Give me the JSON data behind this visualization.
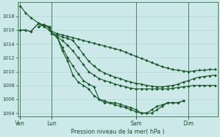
{
  "background_color": "#cce8e8",
  "grid_color": "#aacccc",
  "line_color": "#1a5c2a",
  "title": "Pression niveau de la mer( hPa )",
  "x_tick_labels": [
    "Ven",
    "Lun",
    "Sam",
    "Dim"
  ],
  "x_tick_positions": [
    0,
    12,
    44,
    64
  ],
  "xlim": [
    -1,
    75
  ],
  "ylim": [
    1003.5,
    1020.0
  ],
  "yticks": [
    1004,
    1006,
    1008,
    1010,
    1012,
    1014,
    1016,
    1018
  ],
  "series": [
    {
      "x": [
        0,
        2,
        4,
        7,
        9,
        11,
        12,
        14,
        16,
        18,
        20,
        22,
        24,
        26,
        28,
        30,
        32,
        34,
        36,
        38,
        40,
        42,
        44,
        46,
        48,
        50,
        52,
        54,
        56,
        58,
        60,
        62,
        64,
        66,
        68,
        70,
        72,
        74
      ],
      "y": [
        1019.5,
        1018.5,
        1017.8,
        1017.0,
        1016.5,
        1016.0,
        1015.8,
        1015.5,
        1015.3,
        1015.1,
        1014.9,
        1014.7,
        1014.5,
        1014.3,
        1014.1,
        1013.9,
        1013.7,
        1013.5,
        1013.3,
        1013.1,
        1012.8,
        1012.5,
        1012.2,
        1011.9,
        1011.6,
        1011.3,
        1011.0,
        1010.7,
        1010.5,
        1010.3,
        1010.2,
        1010.1,
        1010.0,
        1010.1,
        1010.2,
        1010.2,
        1010.3,
        1010.3
      ]
    },
    {
      "x": [
        0,
        2,
        4,
        7,
        9,
        11,
        12,
        14,
        16,
        18,
        20,
        22,
        24,
        26,
        28,
        30,
        32,
        34,
        36,
        38,
        40,
        42,
        44,
        46,
        48,
        50,
        52,
        54,
        56,
        58,
        60,
        62,
        64,
        66,
        68,
        70,
        72,
        74
      ],
      "y": [
        1016.0,
        1016.0,
        1015.8,
        1017.0,
        1016.7,
        1016.5,
        1015.5,
        1015.3,
        1015.0,
        1014.8,
        1014.5,
        1013.5,
        1012.5,
        1011.5,
        1010.8,
        1010.2,
        1009.8,
        1009.5,
        1009.2,
        1009.0,
        1008.7,
        1008.5,
        1008.3,
        1008.2,
        1008.0,
        1007.9,
        1007.8,
        1007.8,
        1007.9,
        1008.0,
        1008.2,
        1008.5,
        1008.7,
        1009.0,
        1009.2,
        1009.3,
        1009.4,
        1009.5
      ]
    },
    {
      "x": [
        0,
        2,
        4,
        7,
        9,
        11,
        12,
        14,
        16,
        18,
        20,
        22,
        24,
        26,
        28,
        30,
        32,
        34,
        36,
        38,
        40,
        42,
        44,
        46,
        48,
        50,
        52,
        54,
        56,
        58,
        60,
        62,
        64,
        66,
        68,
        70,
        72,
        74
      ],
      "y": [
        1016.0,
        1016.0,
        1015.8,
        1017.0,
        1016.7,
        1016.5,
        1015.5,
        1015.0,
        1014.5,
        1013.8,
        1013.0,
        1012.0,
        1011.0,
        1010.0,
        1009.5,
        1009.0,
        1008.7,
        1008.5,
        1008.2,
        1008.0,
        1007.8,
        1007.6,
        1007.5,
        1007.5,
        1007.5,
        1007.5,
        1007.5,
        1007.5,
        1007.5,
        1007.6,
        1007.7,
        1007.8,
        1007.9,
        1008.0,
        1008.0,
        1008.0,
        1008.0,
        1008.0
      ]
    },
    {
      "x": [
        7,
        9,
        11,
        12,
        14,
        16,
        18,
        20,
        22,
        24,
        26,
        28,
        30,
        32,
        34,
        36,
        38,
        40,
        42,
        44,
        46,
        48,
        50,
        52,
        54,
        56,
        58,
        60,
        62
      ],
      "y": [
        1016.5,
        1016.8,
        1016.3,
        1015.5,
        1015.0,
        1013.5,
        1012.0,
        1010.8,
        1009.7,
        1008.7,
        1008.2,
        1007.8,
        1006.0,
        1005.5,
        1005.5,
        1005.2,
        1005.0,
        1004.8,
        1004.5,
        1004.2,
        1004.0,
        1004.0,
        1004.5,
        1005.0,
        1005.2,
        1005.5,
        1005.5,
        1005.5,
        1005.8
      ]
    },
    {
      "x": [
        7,
        9,
        11,
        12,
        14,
        16,
        18,
        20,
        22,
        24,
        26,
        28,
        30,
        32,
        34,
        36,
        38,
        40,
        42,
        44,
        46,
        48,
        50,
        52,
        54,
        56,
        58,
        60,
        62
      ],
      "y": [
        1016.5,
        1016.8,
        1016.3,
        1015.5,
        1015.0,
        1013.0,
        1011.5,
        1009.5,
        1008.5,
        1008.0,
        1007.5,
        1006.5,
        1006.0,
        1005.8,
        1005.5,
        1005.5,
        1005.3,
        1005.0,
        1004.8,
        1004.5,
        1004.0,
        1004.0,
        1004.0,
        1004.5,
        1005.0,
        1005.5,
        1005.5,
        1005.5,
        1005.8
      ]
    }
  ],
  "vlines": [
    0,
    12,
    44,
    64
  ],
  "marker_size": 2.0,
  "line_width": 0.9
}
